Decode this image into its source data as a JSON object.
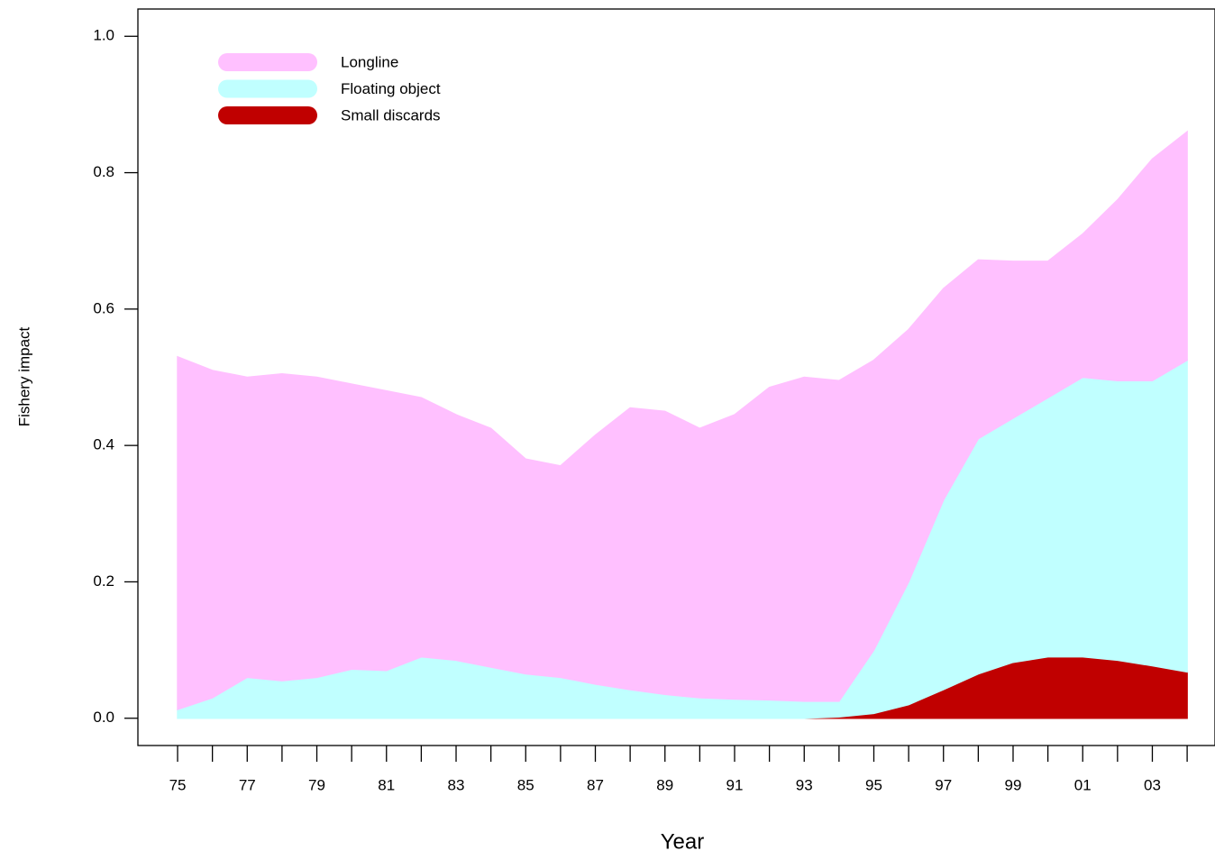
{
  "chart_data": {
    "type": "stacked-area",
    "x_label": "Year",
    "y_label": "Fishery impact",
    "x": [
      1975,
      1976,
      1977,
      1978,
      1979,
      1980,
      1981,
      1982,
      1983,
      1984,
      1985,
      1986,
      1987,
      1988,
      1989,
      1990,
      1991,
      1992,
      1993,
      1994,
      1995,
      1996,
      1997,
      1998,
      1999,
      2000,
      2001,
      2002,
      2003,
      2004
    ],
    "series": [
      {
        "name": "Longline",
        "color": "#ffc0ff",
        "values": [
          0.517,
          0.48,
          0.44,
          0.45,
          0.44,
          0.418,
          0.41,
          0.38,
          0.36,
          0.35,
          0.315,
          0.31,
          0.365,
          0.413,
          0.415,
          0.395,
          0.417,
          0.458,
          0.475,
          0.47,
          0.425,
          0.37,
          0.31,
          0.262,
          0.23,
          0.2,
          0.21,
          0.265,
          0.325,
          0.335
        ]
      },
      {
        "name": "Floating object",
        "color": "#c0ffff",
        "values": [
          0.013,
          0.03,
          0.06,
          0.055,
          0.06,
          0.072,
          0.07,
          0.09,
          0.085,
          0.075,
          0.065,
          0.06,
          0.05,
          0.042,
          0.035,
          0.03,
          0.028,
          0.027,
          0.025,
          0.023,
          0.093,
          0.18,
          0.278,
          0.345,
          0.358,
          0.38,
          0.41,
          0.41,
          0.418,
          0.457
        ]
      },
      {
        "name": "Small discards",
        "color": "#c00000",
        "values": [
          0,
          0,
          0,
          0,
          0,
          0,
          0,
          0,
          0,
          0,
          0,
          0,
          0,
          0,
          0,
          0,
          0,
          0,
          0,
          0.002,
          0.007,
          0.02,
          0.042,
          0.065,
          0.082,
          0.09,
          0.09,
          0.085,
          0.077,
          0.068
        ]
      }
    ],
    "xlim": [
      1973.86,
      2004.8
    ],
    "ylim": [
      -0.04,
      1.04
    ],
    "xticks": [
      {
        "value": 1975,
        "label": "75"
      },
      {
        "value": 1977,
        "label": "77"
      },
      {
        "value": 1979,
        "label": "79"
      },
      {
        "value": 1981,
        "label": "81"
      },
      {
        "value": 1983,
        "label": "83"
      },
      {
        "value": 1985,
        "label": "85"
      },
      {
        "value": 1987,
        "label": "87"
      },
      {
        "value": 1989,
        "label": "89"
      },
      {
        "value": 1991,
        "label": "91"
      },
      {
        "value": 1993,
        "label": "93"
      },
      {
        "value": 1995,
        "label": "95"
      },
      {
        "value": 1997,
        "label": "97"
      },
      {
        "value": 1999,
        "label": "99"
      },
      {
        "value": 2001,
        "label": "01"
      },
      {
        "value": 2003,
        "label": "03"
      }
    ],
    "xminorticks": [
      1976,
      1978,
      1980,
      1982,
      1984,
      1986,
      1988,
      1990,
      1992,
      1994,
      1996,
      1998,
      2000,
      2002,
      2004
    ],
    "yticks": [
      {
        "value": 0,
        "label": "0.0"
      },
      0.2,
      0.4,
      0.6,
      0.8,
      {
        "value": 1,
        "label": "1.0"
      }
    ],
    "legend": "top-left"
  }
}
